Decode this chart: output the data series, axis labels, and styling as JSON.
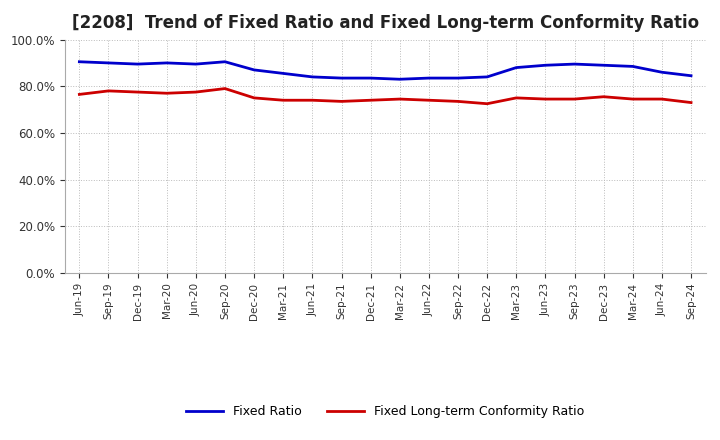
{
  "title": "[2208]  Trend of Fixed Ratio and Fixed Long-term Conformity Ratio",
  "x_labels": [
    "Jun-19",
    "Sep-19",
    "Dec-19",
    "Mar-20",
    "Jun-20",
    "Sep-20",
    "Dec-20",
    "Mar-21",
    "Jun-21",
    "Sep-21",
    "Dec-21",
    "Mar-22",
    "Jun-22",
    "Sep-22",
    "Dec-22",
    "Mar-23",
    "Jun-23",
    "Sep-23",
    "Dec-23",
    "Mar-24",
    "Jun-24",
    "Sep-24"
  ],
  "fixed_ratio": [
    90.5,
    90.0,
    89.5,
    90.0,
    89.5,
    90.5,
    87.0,
    85.5,
    84.0,
    83.5,
    83.5,
    83.0,
    83.5,
    83.5,
    84.0,
    88.0,
    89.0,
    89.5,
    89.0,
    88.5,
    86.0,
    84.5
  ],
  "fixed_lt_ratio": [
    76.5,
    78.0,
    77.5,
    77.0,
    77.5,
    79.0,
    75.0,
    74.0,
    74.0,
    73.5,
    74.0,
    74.5,
    74.0,
    73.5,
    72.5,
    75.0,
    74.5,
    74.5,
    75.5,
    74.5,
    74.5,
    73.0
  ],
  "fixed_ratio_color": "#0000cc",
  "fixed_lt_ratio_color": "#cc0000",
  "background_color": "#ffffff",
  "grid_color": "#bbbbbb",
  "ylim": [
    0,
    100
  ],
  "yticks": [
    0,
    20,
    40,
    60,
    80,
    100
  ],
  "legend_fixed_ratio": "Fixed Ratio",
  "legend_fixed_lt_ratio": "Fixed Long-term Conformity Ratio",
  "title_fontsize": 12,
  "line_width": 2.0
}
